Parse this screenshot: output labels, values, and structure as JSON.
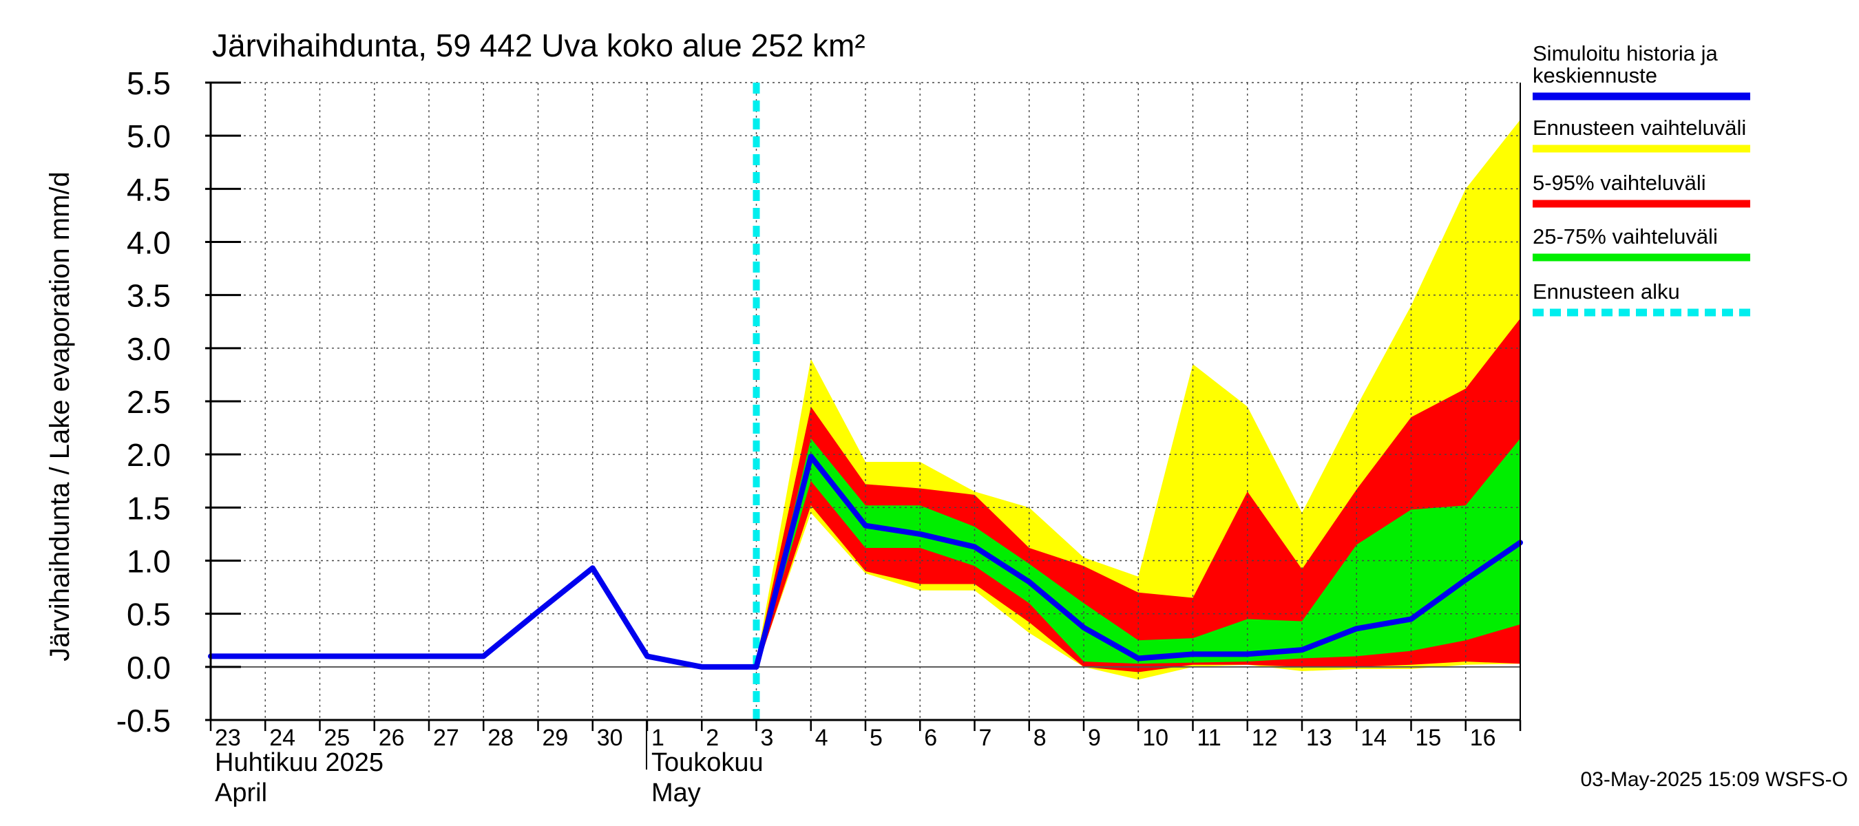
{
  "chart_data": {
    "type": "area",
    "title": "Järvihaihdunta, 59 442 Uva koko alue 252 km²",
    "ylabel": "Järvihaihdunta / Lake evaporation   mm/d",
    "ylim": [
      -0.5,
      5.5
    ],
    "yticks": [
      -0.5,
      0.0,
      0.5,
      1.0,
      1.5,
      2.0,
      2.5,
      3.0,
      3.5,
      4.0,
      4.5,
      5.0,
      5.5
    ],
    "ytick_labels": [
      "-0.5",
      "0.0",
      "0.5",
      "1.0",
      "1.5",
      "2.0",
      "2.5",
      "3.0",
      "3.5",
      "4.0",
      "4.5",
      "5.0",
      "5.5"
    ],
    "grid": true,
    "xlim": [
      0,
      24
    ],
    "day_ticks": [
      "23",
      "24",
      "25",
      "26",
      "27",
      "28",
      "29",
      "30",
      "1",
      "2",
      "3",
      "4",
      "5",
      "6",
      "7",
      "8",
      "9",
      "10",
      "11",
      "12",
      "13",
      "14",
      "15",
      "16"
    ],
    "month_labels": [
      {
        "fi": "Huhtikuu  2025",
        "en": "April",
        "start": 0
      },
      {
        "fi": "Toukokuu",
        "en": "May",
        "start": 8
      }
    ],
    "forecast_start": 10.0,
    "x": [
      10,
      11,
      12,
      13,
      14,
      15,
      16,
      17,
      18,
      19,
      20,
      21,
      22,
      23,
      24
    ],
    "bands": [
      {
        "name": "Ennusteen vaihteluväli",
        "color": "#ffff00",
        "upper": [
          0.05,
          2.9,
          1.93,
          1.93,
          1.65,
          1.5,
          1.03,
          0.85,
          2.85,
          2.45,
          1.45,
          2.45,
          3.4,
          4.5,
          5.15
        ],
        "lower": [
          -0.02,
          1.45,
          0.88,
          0.72,
          0.72,
          0.32,
          0.0,
          -0.12,
          0.0,
          0.02,
          -0.04,
          -0.02,
          -0.02,
          0.02,
          0.03
        ]
      },
      {
        "name": "5-95% vaihteluväli",
        "color": "#ff0000",
        "upper": [
          0.05,
          2.45,
          1.72,
          1.68,
          1.62,
          1.12,
          0.95,
          0.7,
          0.65,
          1.65,
          0.92,
          1.67,
          2.35,
          2.62,
          3.28
        ],
        "lower": [
          -0.04,
          1.52,
          0.9,
          0.78,
          0.78,
          0.42,
          0.0,
          -0.05,
          0.02,
          0.02,
          0.0,
          0.0,
          0.02,
          0.05,
          0.03
        ]
      },
      {
        "name": "25-75% vaihteluväli",
        "color": "#00ee00",
        "upper": [
          0.0,
          2.15,
          1.52,
          1.52,
          1.32,
          0.97,
          0.6,
          0.25,
          0.27,
          0.45,
          0.43,
          1.15,
          1.48,
          1.52,
          2.15
        ],
        "lower": [
          0.0,
          1.75,
          1.12,
          1.12,
          0.95,
          0.6,
          0.05,
          0.03,
          0.04,
          0.05,
          0.08,
          0.1,
          0.15,
          0.25,
          0.4
        ]
      }
    ],
    "series": [
      {
        "name": "Simuloitu historia ja keskiennuste",
        "color": "#0000ee",
        "x": [
          0,
          1,
          2,
          3,
          4,
          5,
          6,
          7,
          8,
          9,
          10,
          11,
          12,
          13,
          14,
          15,
          16,
          17,
          18,
          19,
          20,
          21,
          22,
          23,
          24
        ],
        "values": [
          0.1,
          0.1,
          0.1,
          0.1,
          0.1,
          0.1,
          0.52,
          0.93,
          0.1,
          0.0,
          0.0,
          1.98,
          1.33,
          1.25,
          1.13,
          0.8,
          0.37,
          0.08,
          0.12,
          0.12,
          0.16,
          0.36,
          0.45,
          0.82,
          1.17
        ]
      }
    ],
    "legend": {
      "position": "right",
      "entries": [
        {
          "label_lines": [
            "Simuloitu historia ja",
            "keskiennuste"
          ],
          "color": "#0000ee",
          "style": "solid"
        },
        {
          "label_lines": [
            "Ennusteen vaihteluväli"
          ],
          "color": "#ffff00",
          "style": "solid"
        },
        {
          "label_lines": [
            "5-95% vaihteluväli"
          ],
          "color": "#ff0000",
          "style": "solid"
        },
        {
          "label_lines": [
            "25-75% vaihteluväli"
          ],
          "color": "#00ee00",
          "style": "solid"
        },
        {
          "label_lines": [
            "Ennusteen alku"
          ],
          "color": "#00eeee",
          "style": "dashed"
        }
      ]
    },
    "timestamp": "03-May-2025 15:09 WSFS-O"
  }
}
